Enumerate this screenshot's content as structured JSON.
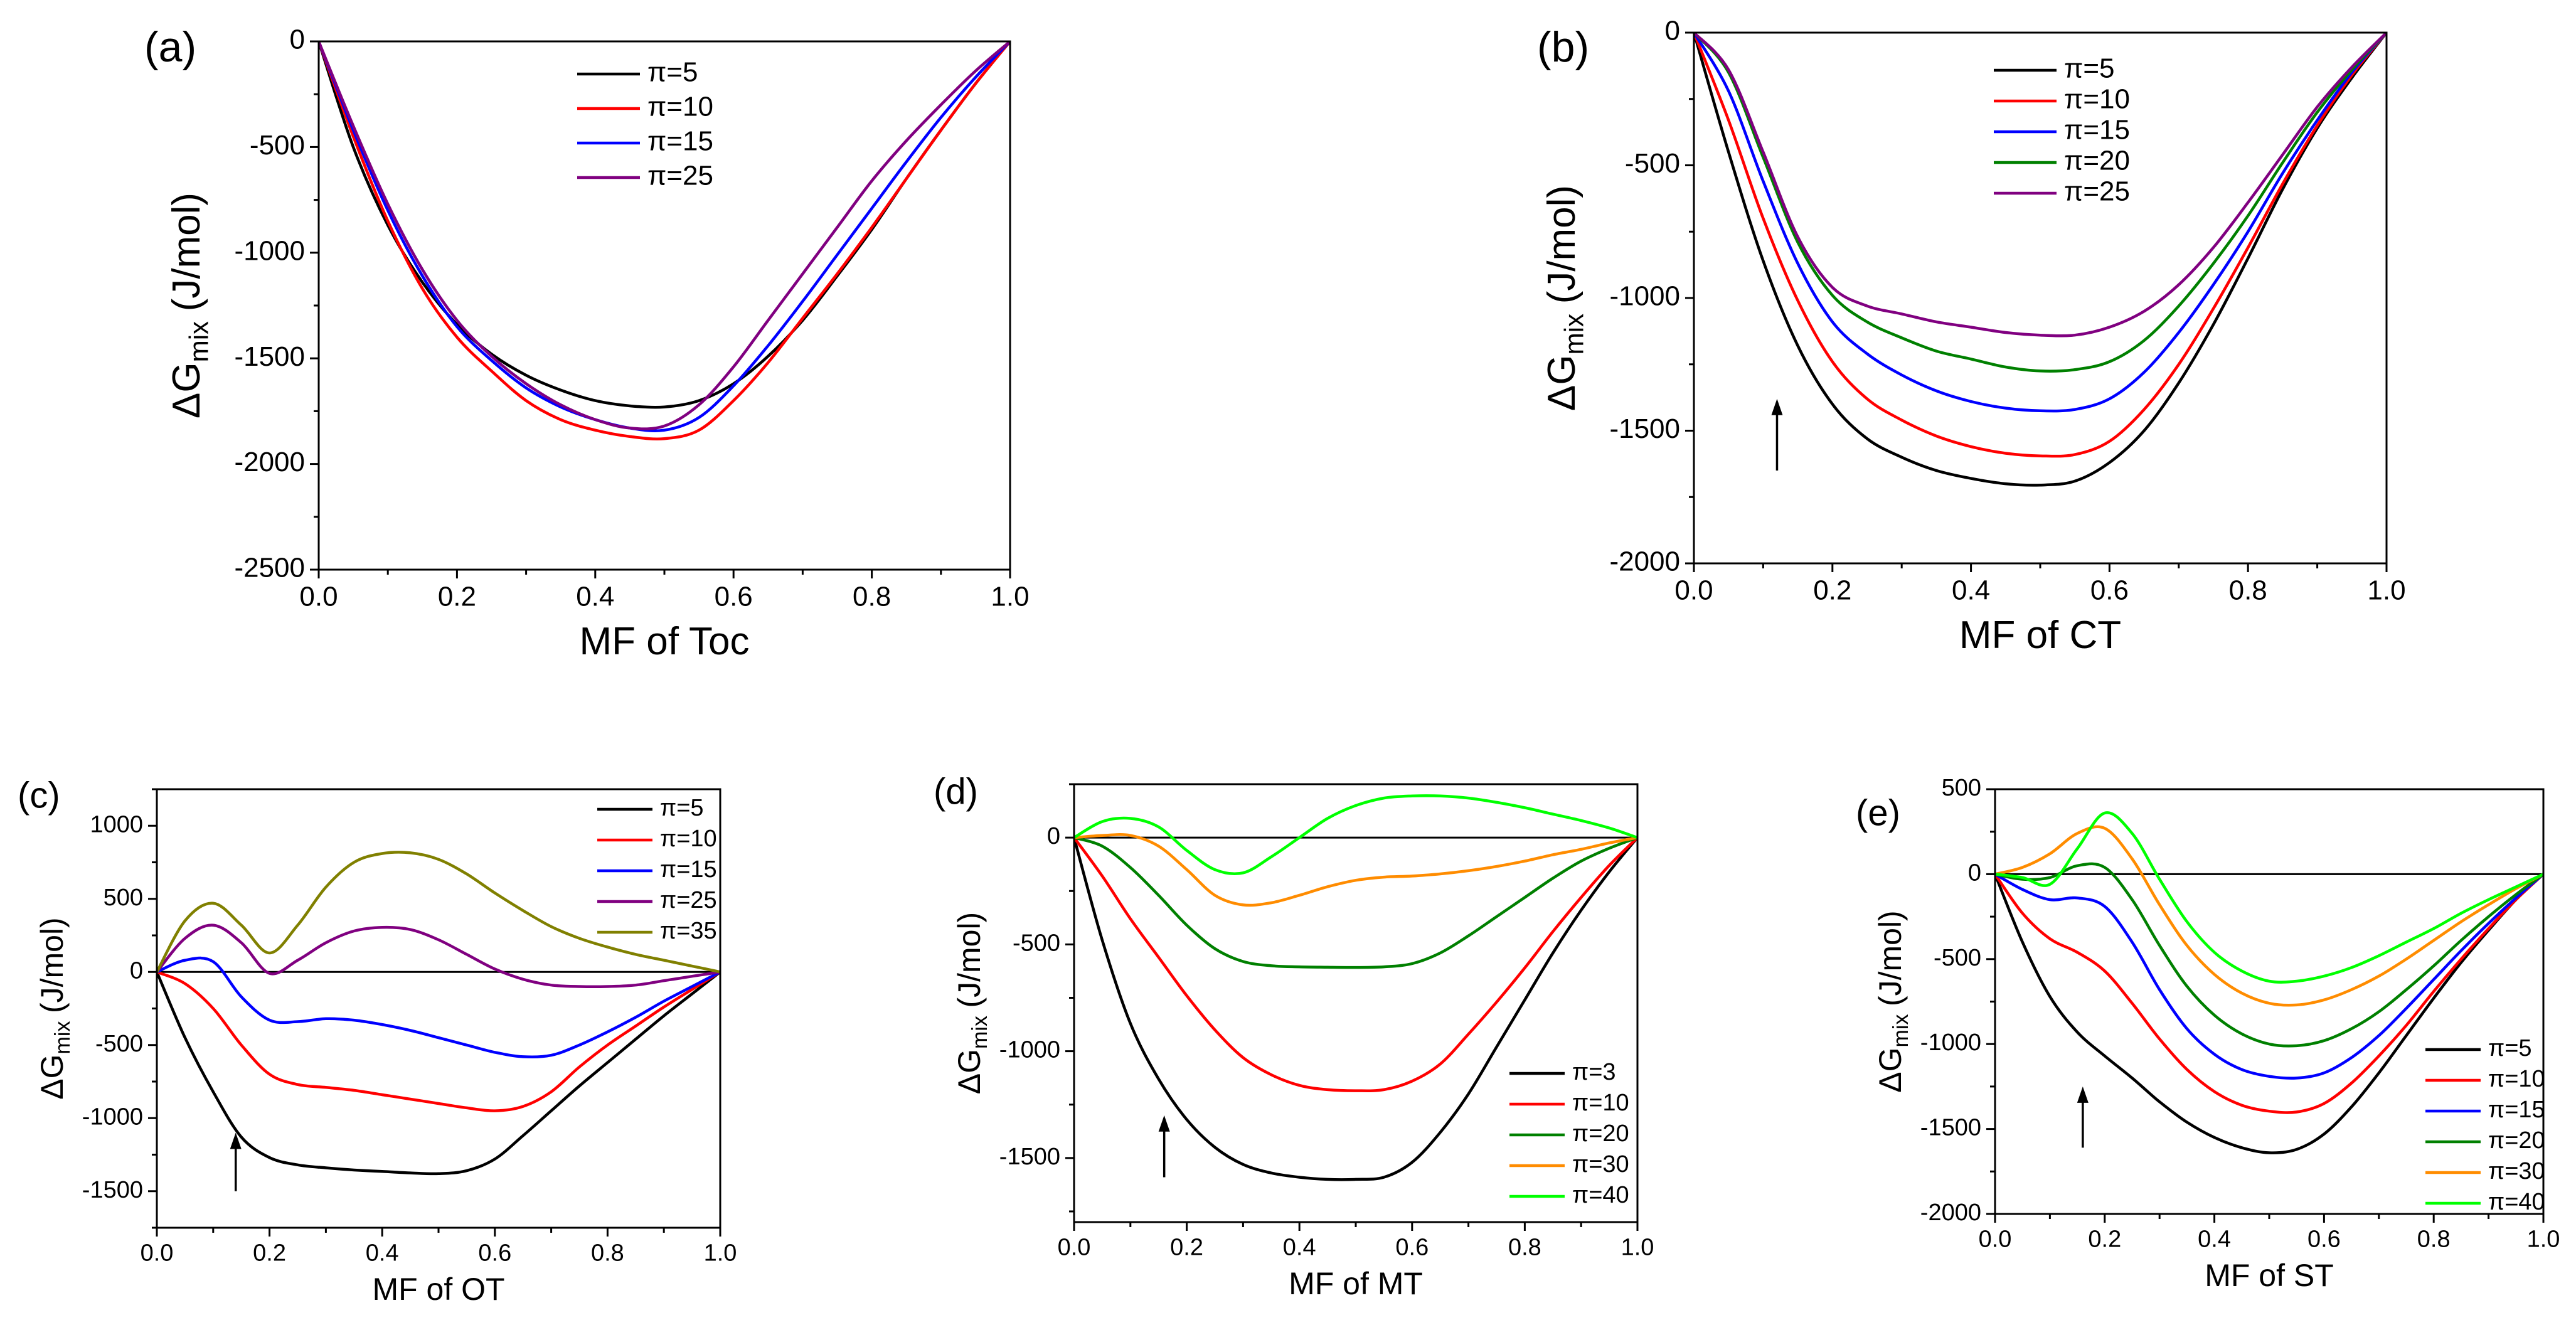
{
  "figure_title": "",
  "chart_data": [
    {
      "panel": "(a)",
      "type": "line",
      "xlabel": "MF of Toc",
      "ylabel": "ΔG",
      "ylabel_sub": "mix",
      "ylabel_unit": "(J/mol)",
      "xlim": [
        0,
        1
      ],
      "ylim": [
        -2500,
        0
      ],
      "xticks": [
        0,
        0.2,
        0.4,
        0.6,
        0.8,
        1.0
      ],
      "xtick_labels": [
        "0.0",
        "0.2",
        "0.4",
        "0.6",
        "0.8",
        "1.0"
      ],
      "yticks": [
        0,
        -500,
        -1000,
        -1500,
        -2000,
        -2500
      ],
      "ytick_labels": [
        "0",
        "-500",
        "-1000",
        "-1500",
        "-2000",
        "-2500"
      ],
      "zero_line": false,
      "arrow": null,
      "legend_position": "top-center",
      "x": [
        0,
        0.05,
        0.1,
        0.15,
        0.2,
        0.25,
        0.3,
        0.35,
        0.4,
        0.45,
        0.5,
        0.55,
        0.6,
        0.65,
        0.7,
        0.75,
        0.8,
        0.85,
        0.9,
        0.95,
        1.0
      ],
      "series": [
        {
          "name": "π=5",
          "color": "#000000",
          "values": [
            0,
            -500,
            -870,
            -1140,
            -1340,
            -1480,
            -1580,
            -1650,
            -1700,
            -1725,
            -1730,
            -1700,
            -1620,
            -1490,
            -1320,
            -1110,
            -890,
            -650,
            -420,
            -200,
            0
          ]
        },
        {
          "name": "π=10",
          "color": "#ff0000",
          "values": [
            0,
            -450,
            -850,
            -1170,
            -1400,
            -1560,
            -1700,
            -1790,
            -1840,
            -1870,
            -1880,
            -1840,
            -1700,
            -1520,
            -1310,
            -1100,
            -880,
            -650,
            -420,
            -200,
            0
          ]
        },
        {
          "name": "π=15",
          "color": "#0000ff",
          "values": [
            0,
            -420,
            -800,
            -1110,
            -1350,
            -1510,
            -1640,
            -1730,
            -1790,
            -1830,
            -1840,
            -1780,
            -1630,
            -1440,
            -1230,
            -1010,
            -790,
            -570,
            -360,
            -170,
            0
          ]
        },
        {
          "name": "π=25",
          "color": "#800080",
          "values": [
            0,
            -400,
            -770,
            -1080,
            -1320,
            -1490,
            -1620,
            -1720,
            -1790,
            -1830,
            -1820,
            -1720,
            -1540,
            -1320,
            -1100,
            -880,
            -660,
            -470,
            -300,
            -140,
            0
          ]
        }
      ]
    },
    {
      "panel": "(b)",
      "type": "line",
      "xlabel": "MF of CT",
      "ylabel": "ΔG",
      "ylabel_sub": "mix",
      "ylabel_unit": "(J/mol)",
      "xlim": [
        0,
        1
      ],
      "ylim": [
        -2000,
        0
      ],
      "xticks": [
        0,
        0.2,
        0.4,
        0.6,
        0.8,
        1.0
      ],
      "xtick_labels": [
        "0.0",
        "0.2",
        "0.4",
        "0.6",
        "0.8",
        "1.0"
      ],
      "yticks": [
        0,
        -500,
        -1000,
        -1500,
        -2000
      ],
      "ytick_labels": [
        "0",
        "-500",
        "-1000",
        "-1500",
        "-2000"
      ],
      "zero_line": false,
      "arrow": {
        "x": 0.12,
        "y_from": -1650,
        "y_to": -1380
      },
      "legend_position": "top-center",
      "x": [
        0,
        0.05,
        0.1,
        0.15,
        0.2,
        0.25,
        0.3,
        0.35,
        0.4,
        0.45,
        0.5,
        0.55,
        0.6,
        0.65,
        0.7,
        0.75,
        0.8,
        0.85,
        0.9,
        0.95,
        1.0
      ],
      "series": [
        {
          "name": "π=5",
          "color": "#000000",
          "values": [
            0,
            -450,
            -860,
            -1180,
            -1400,
            -1530,
            -1600,
            -1650,
            -1680,
            -1700,
            -1705,
            -1690,
            -1620,
            -1500,
            -1320,
            -1100,
            -850,
            -590,
            -360,
            -170,
            0
          ]
        },
        {
          "name": "π=10",
          "color": "#ff0000",
          "values": [
            0,
            -330,
            -700,
            -1010,
            -1240,
            -1380,
            -1460,
            -1520,
            -1560,
            -1585,
            -1595,
            -1590,
            -1540,
            -1420,
            -1250,
            -1040,
            -810,
            -570,
            -350,
            -160,
            0
          ]
        },
        {
          "name": "π=15",
          "color": "#0000ff",
          "values": [
            0,
            -220,
            -560,
            -870,
            -1090,
            -1210,
            -1290,
            -1350,
            -1390,
            -1415,
            -1425,
            -1420,
            -1380,
            -1280,
            -1130,
            -950,
            -750,
            -530,
            -330,
            -150,
            0
          ]
        },
        {
          "name": "π=20",
          "color": "#008000",
          "values": [
            0,
            -150,
            -470,
            -790,
            -990,
            -1090,
            -1150,
            -1200,
            -1230,
            -1260,
            -1275,
            -1270,
            -1240,
            -1160,
            -1030,
            -870,
            -690,
            -490,
            -300,
            -140,
            0
          ]
        },
        {
          "name": "π=25",
          "color": "#800080",
          "values": [
            0,
            -140,
            -450,
            -770,
            -960,
            -1030,
            -1060,
            -1090,
            -1110,
            -1130,
            -1140,
            -1140,
            -1110,
            -1050,
            -950,
            -810,
            -640,
            -460,
            -280,
            -130,
            0
          ]
        }
      ]
    },
    {
      "panel": "(c)",
      "type": "line",
      "xlabel": "MF of OT",
      "ylabel": "ΔG",
      "ylabel_sub": "mix",
      "ylabel_unit": "(J/mol)",
      "xlim": [
        0,
        1
      ],
      "ylim": [
        -1750,
        1250
      ],
      "xticks": [
        0,
        0.2,
        0.4,
        0.6,
        0.8,
        1.0
      ],
      "xtick_labels": [
        "0.0",
        "0.2",
        "0.4",
        "0.6",
        "0.8",
        "1.0"
      ],
      "yticks": [
        1000,
        500,
        0,
        -500,
        -1000,
        -1500
      ],
      "ytick_labels": [
        "1000",
        "500",
        "0",
        "-500",
        "-1000",
        "-1500"
      ],
      "zero_line": true,
      "arrow": {
        "x": 0.14,
        "y_from": -1500,
        "y_to": -1100
      },
      "legend_position": "top-right",
      "x": [
        0,
        0.05,
        0.1,
        0.15,
        0.2,
        0.25,
        0.3,
        0.35,
        0.4,
        0.45,
        0.5,
        0.55,
        0.6,
        0.65,
        0.7,
        0.75,
        0.8,
        0.85,
        0.9,
        0.95,
        1.0
      ],
      "series": [
        {
          "name": "π=5",
          "color": "#000000",
          "values": [
            0,
            -450,
            -820,
            -1130,
            -1270,
            -1320,
            -1340,
            -1355,
            -1365,
            -1375,
            -1380,
            -1360,
            -1280,
            -1120,
            -950,
            -780,
            -620,
            -460,
            -300,
            -150,
            0
          ]
        },
        {
          "name": "π=10",
          "color": "#ff0000",
          "values": [
            0,
            -80,
            -250,
            -500,
            -700,
            -770,
            -790,
            -810,
            -840,
            -870,
            -900,
            -930,
            -950,
            -920,
            -820,
            -650,
            -500,
            -370,
            -240,
            -120,
            0
          ]
        },
        {
          "name": "π=15",
          "color": "#0000ff",
          "values": [
            0,
            80,
            70,
            -170,
            -330,
            -340,
            -320,
            -330,
            -360,
            -400,
            -450,
            -500,
            -550,
            -580,
            -570,
            -500,
            -410,
            -310,
            -200,
            -100,
            0
          ]
        },
        {
          "name": "π=25",
          "color": "#800080",
          "values": [
            0,
            230,
            320,
            200,
            -10,
            80,
            200,
            280,
            305,
            290,
            220,
            120,
            20,
            -50,
            -90,
            -100,
            -100,
            -90,
            -60,
            -30,
            0
          ]
        },
        {
          "name": "π=35",
          "color": "#808000",
          "values": [
            0,
            350,
            470,
            320,
            130,
            320,
            580,
            750,
            810,
            815,
            770,
            670,
            540,
            420,
            310,
            230,
            170,
            120,
            80,
            40,
            0
          ]
        }
      ]
    },
    {
      "panel": "(d)",
      "type": "line",
      "xlabel": "MF of MT",
      "ylabel": "ΔG",
      "ylabel_sub": "mix",
      "ylabel_unit": "(J/mol)",
      "xlim": [
        0,
        1
      ],
      "ylim": [
        -1800,
        250
      ],
      "xticks": [
        0,
        0.2,
        0.4,
        0.6,
        0.8,
        1.0
      ],
      "xtick_labels": [
        "0.0",
        "0.2",
        "0.4",
        "0.6",
        "0.8",
        "1.0"
      ],
      "yticks": [
        0,
        -500,
        -1000,
        -1500
      ],
      "ytick_labels": [
        "0",
        "-500",
        "-1000",
        "-1500"
      ],
      "zero_line": true,
      "arrow": {
        "x": 0.16,
        "y_from": -1590,
        "y_to": -1300
      },
      "legend_position": "bottom-right",
      "x": [
        0,
        0.05,
        0.1,
        0.15,
        0.2,
        0.25,
        0.3,
        0.35,
        0.4,
        0.45,
        0.5,
        0.55,
        0.6,
        0.65,
        0.7,
        0.75,
        0.8,
        0.85,
        0.9,
        0.95,
        1.0
      ],
      "series": [
        {
          "name": "π=3",
          "color": "#000000",
          "values": [
            0,
            -480,
            -870,
            -1130,
            -1320,
            -1450,
            -1530,
            -1570,
            -1590,
            -1600,
            -1600,
            -1590,
            -1520,
            -1380,
            -1200,
            -980,
            -760,
            -540,
            -340,
            -160,
            0
          ]
        },
        {
          "name": "π=10",
          "color": "#ff0000",
          "values": [
            0,
            -180,
            -380,
            -560,
            -740,
            -900,
            -1030,
            -1110,
            -1160,
            -1180,
            -1185,
            -1180,
            -1140,
            -1060,
            -920,
            -770,
            -610,
            -440,
            -280,
            -130,
            0
          ]
        },
        {
          "name": "π=20",
          "color": "#008000",
          "values": [
            0,
            -40,
            -140,
            -270,
            -410,
            -520,
            -580,
            -600,
            -605,
            -607,
            -608,
            -605,
            -590,
            -540,
            -460,
            -370,
            -280,
            -190,
            -110,
            -50,
            0
          ]
        },
        {
          "name": "π=30",
          "color": "#ff8c00",
          "values": [
            0,
            10,
            10,
            -40,
            -150,
            -270,
            -315,
            -305,
            -270,
            -230,
            -200,
            -185,
            -180,
            -170,
            -155,
            -135,
            -110,
            -80,
            -55,
            -25,
            0
          ]
        },
        {
          "name": "π=40",
          "color": "#00ff00",
          "values": [
            0,
            75,
            90,
            50,
            -60,
            -150,
            -165,
            -90,
            0,
            90,
            150,
            185,
            195,
            195,
            185,
            165,
            140,
            110,
            80,
            45,
            0
          ]
        }
      ]
    },
    {
      "panel": "(e)",
      "type": "line",
      "xlabel": "MF of ST",
      "ylabel": "ΔG",
      "ylabel_sub": "mix",
      "ylabel_unit": "(J/mol)",
      "xlim": [
        0,
        1
      ],
      "ylim": [
        -2000,
        500
      ],
      "xticks": [
        0,
        0.2,
        0.4,
        0.6,
        0.8,
        1.0
      ],
      "xtick_labels": [
        "0.0",
        "0.2",
        "0.4",
        "0.6",
        "0.8",
        "1.0"
      ],
      "yticks": [
        500,
        0,
        -500,
        -1000,
        -1500,
        -2000
      ],
      "ytick_labels": [
        "500",
        "0",
        "-500",
        "-1000",
        "-1500",
        "-2000"
      ],
      "zero_line": true,
      "arrow": {
        "x": 0.16,
        "y_from": -1610,
        "y_to": -1250
      },
      "legend_position": "bottom-right",
      "x": [
        0,
        0.05,
        0.1,
        0.15,
        0.2,
        0.25,
        0.3,
        0.35,
        0.4,
        0.45,
        0.5,
        0.55,
        0.6,
        0.65,
        0.7,
        0.75,
        0.8,
        0.85,
        0.9,
        0.95,
        1.0
      ],
      "series": [
        {
          "name": "π=5",
          "color": "#000000",
          "values": [
            0,
            -400,
            -720,
            -930,
            -1070,
            -1200,
            -1340,
            -1460,
            -1550,
            -1610,
            -1640,
            -1620,
            -1530,
            -1370,
            -1170,
            -950,
            -730,
            -520,
            -330,
            -150,
            0
          ]
        },
        {
          "name": "π=10",
          "color": "#ff0000",
          "values": [
            0,
            -230,
            -380,
            -460,
            -570,
            -760,
            -970,
            -1150,
            -1280,
            -1360,
            -1395,
            -1400,
            -1350,
            -1230,
            -1070,
            -890,
            -690,
            -500,
            -320,
            -150,
            0
          ]
        },
        {
          "name": "π=15",
          "color": "#0000ff",
          "values": [
            0,
            -90,
            -150,
            -140,
            -190,
            -400,
            -680,
            -910,
            -1060,
            -1150,
            -1190,
            -1200,
            -1170,
            -1080,
            -950,
            -790,
            -620,
            -450,
            -290,
            -140,
            0
          ]
        },
        {
          "name": "π=20",
          "color": "#008000",
          "values": [
            0,
            -30,
            -20,
            50,
            40,
            -150,
            -420,
            -660,
            -830,
            -940,
            -1000,
            -1010,
            -980,
            -910,
            -810,
            -680,
            -540,
            -390,
            -250,
            -120,
            0
          ]
        },
        {
          "name": "π=30",
          "color": "#ff8c00",
          "values": [
            0,
            40,
            120,
            240,
            270,
            90,
            -180,
            -420,
            -590,
            -700,
            -760,
            -770,
            -740,
            -680,
            -600,
            -500,
            -390,
            -280,
            -180,
            -85,
            0
          ]
        },
        {
          "name": "π=40",
          "color": "#00ff00",
          "values": [
            0,
            -20,
            -60,
            150,
            360,
            240,
            -30,
            -280,
            -460,
            -570,
            -630,
            -630,
            -600,
            -550,
            -480,
            -400,
            -320,
            -230,
            -150,
            -75,
            0
          ]
        }
      ]
    }
  ]
}
